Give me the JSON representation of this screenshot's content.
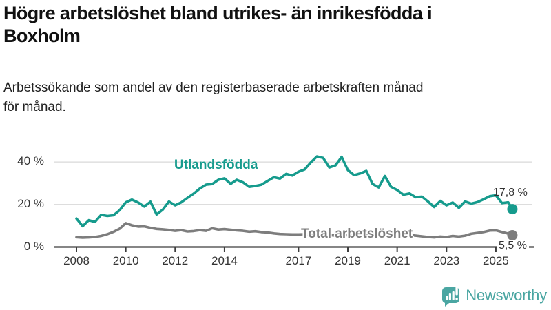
{
  "header": {
    "title": "Högre arbetslöshet bland utrikes- än inrikesfödda i\nBoxholm",
    "subtitle": "Arbetssökande som andel av den registerbaserade arbetskraften månad\nför månad."
  },
  "chart_data": {
    "type": "line",
    "title": "Högre arbetslöshet bland utrikes- än inrikesfödda i Boxholm",
    "subtitle": "Arbetssökande som andel av den registerbaserade arbetskraften månad för månad.",
    "unit": "%",
    "grid": "horizontal",
    "legend": "inline-labels",
    "xlim": [
      2007.6,
      2026.2
    ],
    "ylim": [
      0,
      45
    ],
    "y_tick_values": [
      0,
      20,
      40
    ],
    "y_tick_labels": [
      "0 %",
      "20 %",
      "40 %"
    ],
    "x_tick_values": [
      2008,
      2010,
      2012,
      2014,
      2017,
      2019,
      2021,
      2023,
      2025
    ],
    "x_tick_labels": [
      "2008",
      "2010",
      "2012",
      "2014",
      "2017",
      "2019",
      "2021",
      "2023",
      "2025"
    ],
    "x": [
      2008.0,
      2008.25,
      2008.5,
      2008.75,
      2009.0,
      2009.25,
      2009.5,
      2009.75,
      2010.0,
      2010.25,
      2010.5,
      2010.75,
      2011.0,
      2011.25,
      2011.5,
      2011.75,
      2012.0,
      2012.25,
      2012.5,
      2012.75,
      2013.0,
      2013.25,
      2013.5,
      2013.75,
      2014.0,
      2014.25,
      2014.5,
      2014.75,
      2015.0,
      2015.25,
      2015.5,
      2015.75,
      2016.0,
      2016.25,
      2016.5,
      2016.75,
      2017.0,
      2017.25,
      2017.5,
      2017.75,
      2018.0,
      2018.25,
      2018.5,
      2018.75,
      2019.0,
      2019.25,
      2019.5,
      2019.75,
      2020.0,
      2020.25,
      2020.5,
      2020.75,
      2021.0,
      2021.25,
      2021.5,
      2021.75,
      2022.0,
      2022.25,
      2022.5,
      2022.75,
      2023.0,
      2023.25,
      2023.5,
      2023.75,
      2024.0,
      2024.25,
      2024.5,
      2024.75,
      2025.0,
      2025.25,
      2025.5,
      2025.67
    ],
    "series": [
      {
        "name": "Utlandsfödda",
        "color": "#169b8d",
        "end_label": "17,8 %",
        "end_value": 17.8,
        "values": [
          13.4,
          9.8,
          12.6,
          11.8,
          15.1,
          14.6,
          14.9,
          17.3,
          21.0,
          22.3,
          20.9,
          19.0,
          21.3,
          15.3,
          17.6,
          21.4,
          19.6,
          21.0,
          23.1,
          25.1,
          27.5,
          29.3,
          29.6,
          31.6,
          32.3,
          29.7,
          31.6,
          30.4,
          28.3,
          28.7,
          29.3,
          31.1,
          32.8,
          32.2,
          34.4,
          33.6,
          35.4,
          36.5,
          39.8,
          42.6,
          41.9,
          37.4,
          38.4,
          42.4,
          36.2,
          33.8,
          34.6,
          35.8,
          29.7,
          28.0,
          33.4,
          28.3,
          26.8,
          24.6,
          25.2,
          23.4,
          23.7,
          21.4,
          18.8,
          21.7,
          19.6,
          20.9,
          18.4,
          21.4,
          20.4,
          21.1,
          22.4,
          23.9,
          24.3,
          20.6,
          21.0,
          17.8
        ]
      },
      {
        "name": "Total arbetslöshet",
        "color": "#7d7d7d",
        "end_label": "5,5 %",
        "end_value": 5.5,
        "values": [
          4.6,
          4.4,
          4.5,
          4.7,
          5.2,
          6.0,
          7.1,
          8.6,
          11.2,
          10.2,
          9.6,
          9.7,
          9.0,
          8.5,
          8.3,
          8.0,
          7.6,
          7.9,
          7.3,
          7.5,
          7.9,
          7.6,
          8.8,
          8.2,
          8.4,
          8.1,
          7.8,
          7.6,
          7.2,
          7.4,
          7.0,
          6.8,
          6.4,
          6.1,
          6.0,
          5.9,
          5.9,
          6.0,
          5.8,
          5.7,
          5.6,
          5.5,
          5.4,
          5.6,
          5.5,
          5.6,
          5.7,
          5.9,
          6.0,
          6.8,
          6.5,
          6.3,
          6.1,
          5.8,
          5.6,
          5.3,
          5.0,
          4.7,
          4.5,
          4.9,
          4.7,
          5.2,
          4.9,
          5.3,
          6.2,
          6.6,
          7.0,
          7.7,
          7.8,
          7.0,
          6.3,
          5.5
        ]
      }
    ]
  },
  "branding": {
    "logo_text": "Newsworthy",
    "logo_icon": "bar-chart-speech-bubble-icon",
    "logo_color": "#4aa6a2"
  },
  "colors": {
    "accent_teal": "#169b8d",
    "series_gray": "#7d7d7d",
    "grid": "#d8d8d8",
    "axis": "#3d3d3d"
  }
}
